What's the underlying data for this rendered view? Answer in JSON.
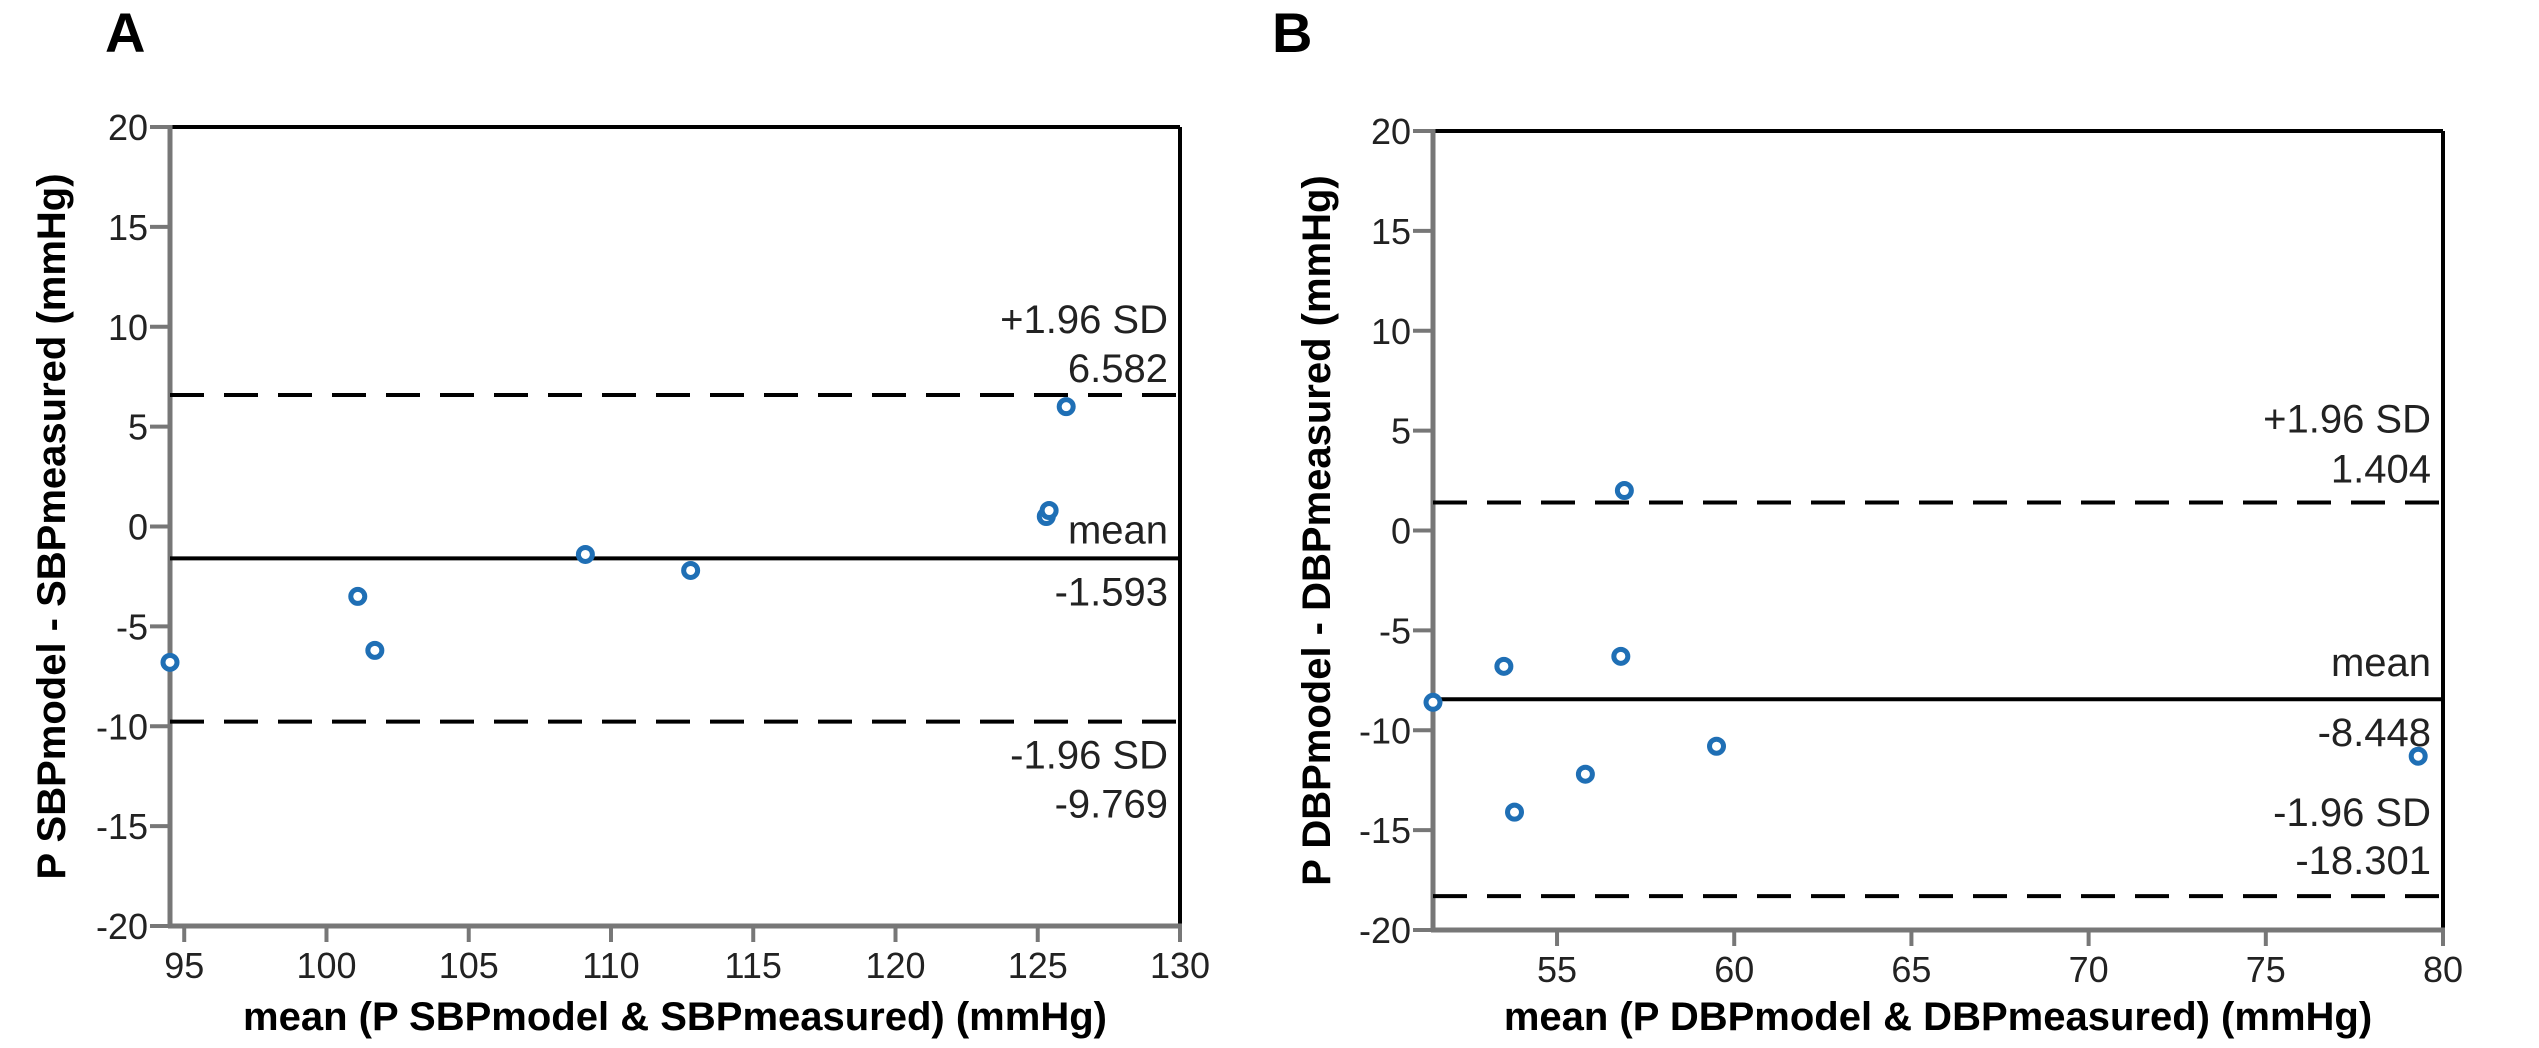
{
  "chart_data": [
    {
      "type": "scatter",
      "panel": "A",
      "xlabel": "mean (P SBPmodel & SBPmeasured) (mmHg)",
      "ylabel": "P SBPmodel - SBPmeasured (mmHg)",
      "xlim": [
        94.5,
        130
      ],
      "ylim": [
        -20,
        20
      ],
      "xticks": [
        95,
        100,
        105,
        110,
        115,
        120,
        125,
        130
      ],
      "yticks": [
        20,
        15,
        10,
        5,
        0,
        -5,
        -10,
        -15,
        -20
      ],
      "points": [
        {
          "x": 94.5,
          "y": -6.8
        },
        {
          "x": 101.1,
          "y": -3.5
        },
        {
          "x": 101.7,
          "y": -6.2
        },
        {
          "x": 109.1,
          "y": -1.4
        },
        {
          "x": 112.8,
          "y": -2.2
        },
        {
          "x": 125.3,
          "y": 0.5
        },
        {
          "x": 125.4,
          "y": 0.8
        },
        {
          "x": 126.0,
          "y": 6.0
        }
      ],
      "lines": [
        {
          "kind": "upper",
          "style": "dashed",
          "value": 6.582,
          "label": "+1.96 SD",
          "value_text": "6.582"
        },
        {
          "kind": "mean",
          "style": "solid",
          "value": -1.593,
          "label": "mean",
          "value_text": "-1.593"
        },
        {
          "kind": "lower",
          "style": "dashed",
          "value": -9.769,
          "label": "-1.96 SD",
          "value_text": "-9.769"
        }
      ],
      "point_color": "#1f6fb5"
    },
    {
      "type": "scatter",
      "panel": "B",
      "xlabel": "mean (P DBPmodel & DBPmeasured) (mmHg)",
      "ylabel": "P DBPmodel - DBPmeasured (mmHg)",
      "xlim": [
        51.5,
        80
      ],
      "ylim": [
        -20,
        20
      ],
      "xticks": [
        55,
        60,
        65,
        70,
        75,
        80
      ],
      "yticks": [
        20,
        15,
        10,
        5,
        0,
        -5,
        -10,
        -15,
        -20
      ],
      "points": [
        {
          "x": 51.5,
          "y": -8.6
        },
        {
          "x": 53.5,
          "y": -6.8
        },
        {
          "x": 53.8,
          "y": -14.1
        },
        {
          "x": 55.8,
          "y": -12.2
        },
        {
          "x": 56.8,
          "y": -6.3
        },
        {
          "x": 56.9,
          "y": 2.0
        },
        {
          "x": 59.5,
          "y": -10.8
        },
        {
          "x": 79.3,
          "y": -11.3
        }
      ],
      "lines": [
        {
          "kind": "upper",
          "style": "dashed",
          "value": 1.404,
          "label": "+1.96 SD",
          "value_text": "1.404"
        },
        {
          "kind": "mean",
          "style": "solid",
          "value": -8.448,
          "label": "mean",
          "value_text": "-8.448"
        },
        {
          "kind": "lower",
          "style": "dashed",
          "value": -18.301,
          "label": "-1.96 SD",
          "value_text": "-18.301"
        }
      ],
      "point_color": "#1f6fb5"
    }
  ]
}
